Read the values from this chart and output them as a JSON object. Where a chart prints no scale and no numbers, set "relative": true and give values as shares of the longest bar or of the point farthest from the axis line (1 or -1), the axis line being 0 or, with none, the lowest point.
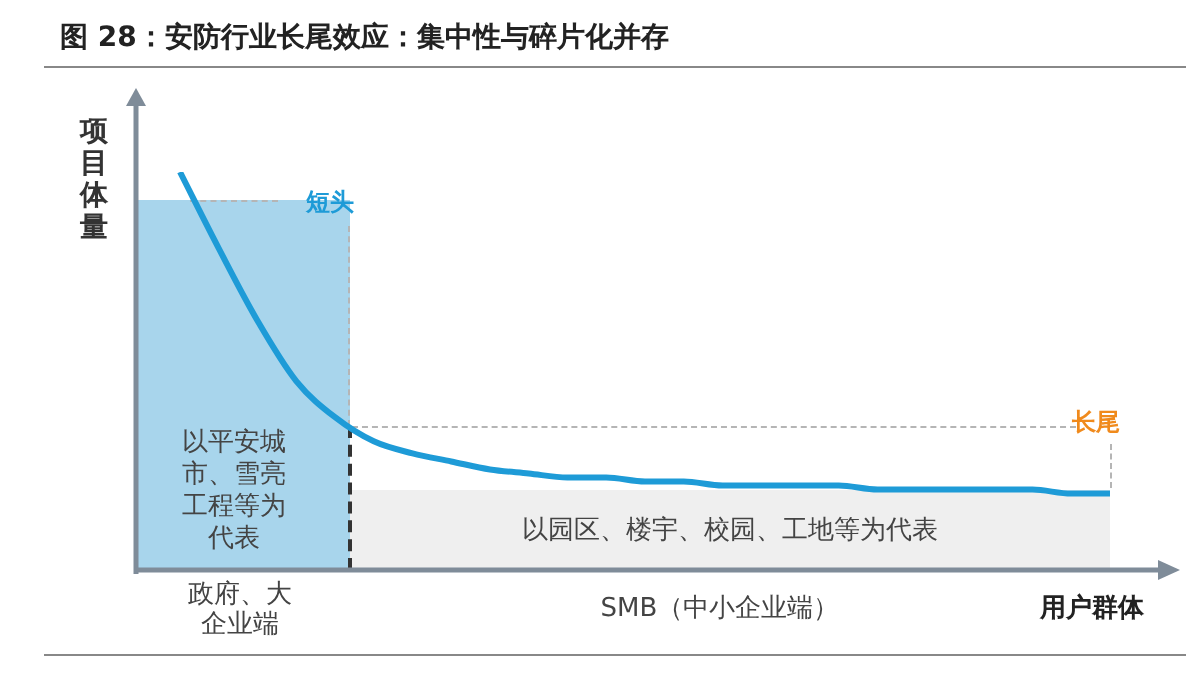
{
  "chart_data": {
    "type": "line",
    "title": "图 28：安防行业长尾效应：集中性与碎片化并存",
    "ylabel": "项目体量",
    "xlabel": "用户群体",
    "relative": true,
    "legend": false,
    "marker": "none",
    "line_style": "solid",
    "categories": [
      null,
      null,
      null,
      null,
      null,
      null,
      null,
      null,
      null,
      null,
      null,
      null,
      null,
      null,
      null,
      null,
      null,
      null,
      null,
      null,
      null,
      null,
      null,
      null,
      null
    ],
    "series": [
      {
        "color": "#1e9bd7",
        "values": [
          1.0,
          0.81,
          0.63,
          0.48,
          0.39,
          0.33,
          0.3,
          0.28,
          0.26,
          0.25,
          0.24,
          0.24,
          0.23,
          0.23,
          0.22,
          0.22,
          0.22,
          0.22,
          0.21,
          0.21,
          0.21,
          0.21,
          0.21,
          0.2,
          0.2
        ]
      }
    ],
    "annotations": [
      "短头",
      "长尾",
      "以平安城市、雪亮工程等为代表",
      "以园区、楼宇、校园、工地等为代表",
      "政府、大企业端",
      "SMB（中小企业端）"
    ]
  }
}
